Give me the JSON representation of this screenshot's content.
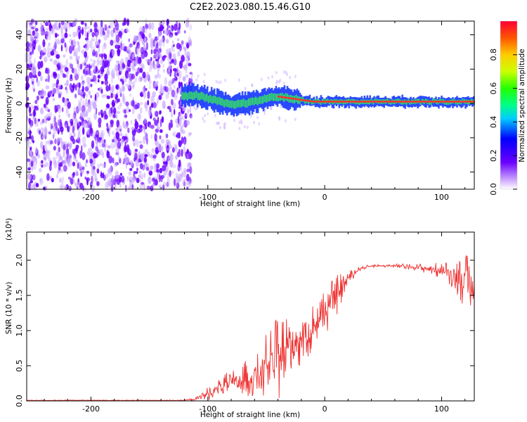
{
  "title": "C2E2.2023.080.15.46.G10",
  "colors": {
    "snr_line": "#ee3333",
    "dots_primary": "#6a00ff",
    "dots_faint": "#c9a8ff",
    "ridge_core": "#ff2a2a",
    "ridge_mid": "#33dd66",
    "ridge_outer": "#1133ff"
  },
  "chart_data": [
    {
      "type": "heatmap",
      "xlabel": "Height of straight line (km)",
      "ylabel": "Frequency (Hz)",
      "xlim": [
        -255,
        128
      ],
      "ylim": [
        -50,
        48
      ],
      "xticks": [
        -200,
        -100,
        0,
        100
      ],
      "yticks": [
        -40,
        -20,
        0,
        20,
        40
      ],
      "xtick_labels": [
        "-200",
        "-100",
        "0",
        "100"
      ],
      "ytick_labels": [
        "-40",
        "-20",
        "0",
        "20",
        "40"
      ],
      "noise_region": [
        -255,
        -120
      ],
      "ridge": {
        "x": [
          -120,
          -110,
          -100,
          -90,
          -80,
          -70,
          -60,
          -50,
          -40,
          -30,
          -20,
          -10,
          0,
          20,
          40,
          60,
          80,
          100,
          128
        ],
        "y": [
          4,
          5,
          3,
          1,
          -1,
          0,
          1,
          3,
          4,
          3,
          2,
          1,
          1,
          1,
          1,
          1,
          1,
          1,
          1
        ]
      },
      "grid": false
    },
    {
      "type": "colorbar",
      "label": "Normalized spectral amplitude",
      "range": [
        0,
        1
      ],
      "ticks": [
        0.0,
        0.2,
        0.4,
        0.6,
        0.8
      ],
      "tick_labels": [
        "0.0",
        "0.2",
        "0.4",
        "0.6",
        "0.8"
      ]
    },
    {
      "type": "line",
      "xlabel": "Height of straight line (km)",
      "ylabel": "SNR (10 * v/v)",
      "exponent_label": "(x10⁴)",
      "xlim": [
        -255,
        128
      ],
      "ylim": [
        0,
        2.4
      ],
      "xticks": [
        -200,
        -100,
        0,
        100
      ],
      "yticks": [
        0.0,
        0.5,
        1.0,
        1.5,
        2.0
      ],
      "xtick_labels": [
        "-200",
        "-100",
        "0",
        "100"
      ],
      "ytick_labels": [
        "0.0",
        "0.5",
        "1.0",
        "1.5",
        "2.0"
      ],
      "series": [
        {
          "x": [
            -255,
            -200,
            -150,
            -120,
            -110,
            -100,
            -90,
            -80,
            -70,
            -60,
            -50,
            -40,
            -30,
            -20,
            -10,
            0,
            10,
            20,
            30,
            40,
            60,
            80,
            100,
            110,
            120,
            128
          ],
          "y": [
            0.01,
            0.01,
            0.01,
            0.01,
            0.03,
            0.1,
            0.2,
            0.25,
            0.3,
            0.35,
            0.45,
            0.6,
            0.75,
            0.9,
            1.05,
            1.25,
            1.5,
            1.75,
            1.88,
            1.92,
            1.92,
            1.9,
            1.85,
            1.8,
            1.7,
            1.6
          ],
          "noise_amplitude": [
            0.0,
            0.0,
            0.0,
            0.0,
            0.05,
            0.1,
            0.12,
            0.2,
            0.25,
            0.3,
            0.5,
            0.6,
            0.55,
            0.45,
            0.35,
            0.35,
            0.3,
            0.1,
            0.03,
            0.02,
            0.03,
            0.05,
            0.12,
            0.2,
            0.4,
            0.5
          ]
        }
      ],
      "grid": false
    }
  ]
}
